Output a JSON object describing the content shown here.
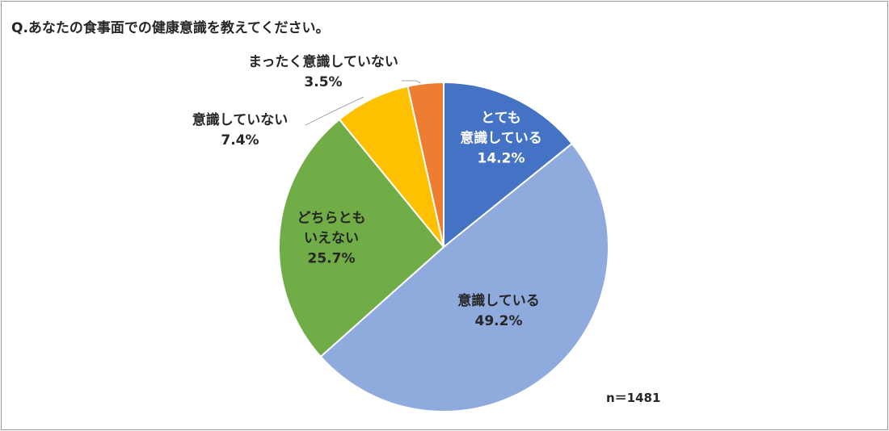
{
  "chart_data": {
    "type": "pie",
    "title": "Q.あなたの食事面での健康意識を教えてください。",
    "categories": [
      "とても\n意識している",
      "意識している",
      "どちらとも\nいえない",
      "意識していない",
      "まったく意識していない"
    ],
    "values": [
      14.2,
      49.2,
      25.7,
      7.4,
      3.5
    ],
    "value_labels": [
      "14.2%",
      "49.2%",
      "25.7%",
      "7.4%",
      "3.5%"
    ],
    "colors": [
      "#4472c4",
      "#8faadc",
      "#70ad47",
      "#ffc000",
      "#ed7d31"
    ],
    "note": "n＝1481"
  }
}
